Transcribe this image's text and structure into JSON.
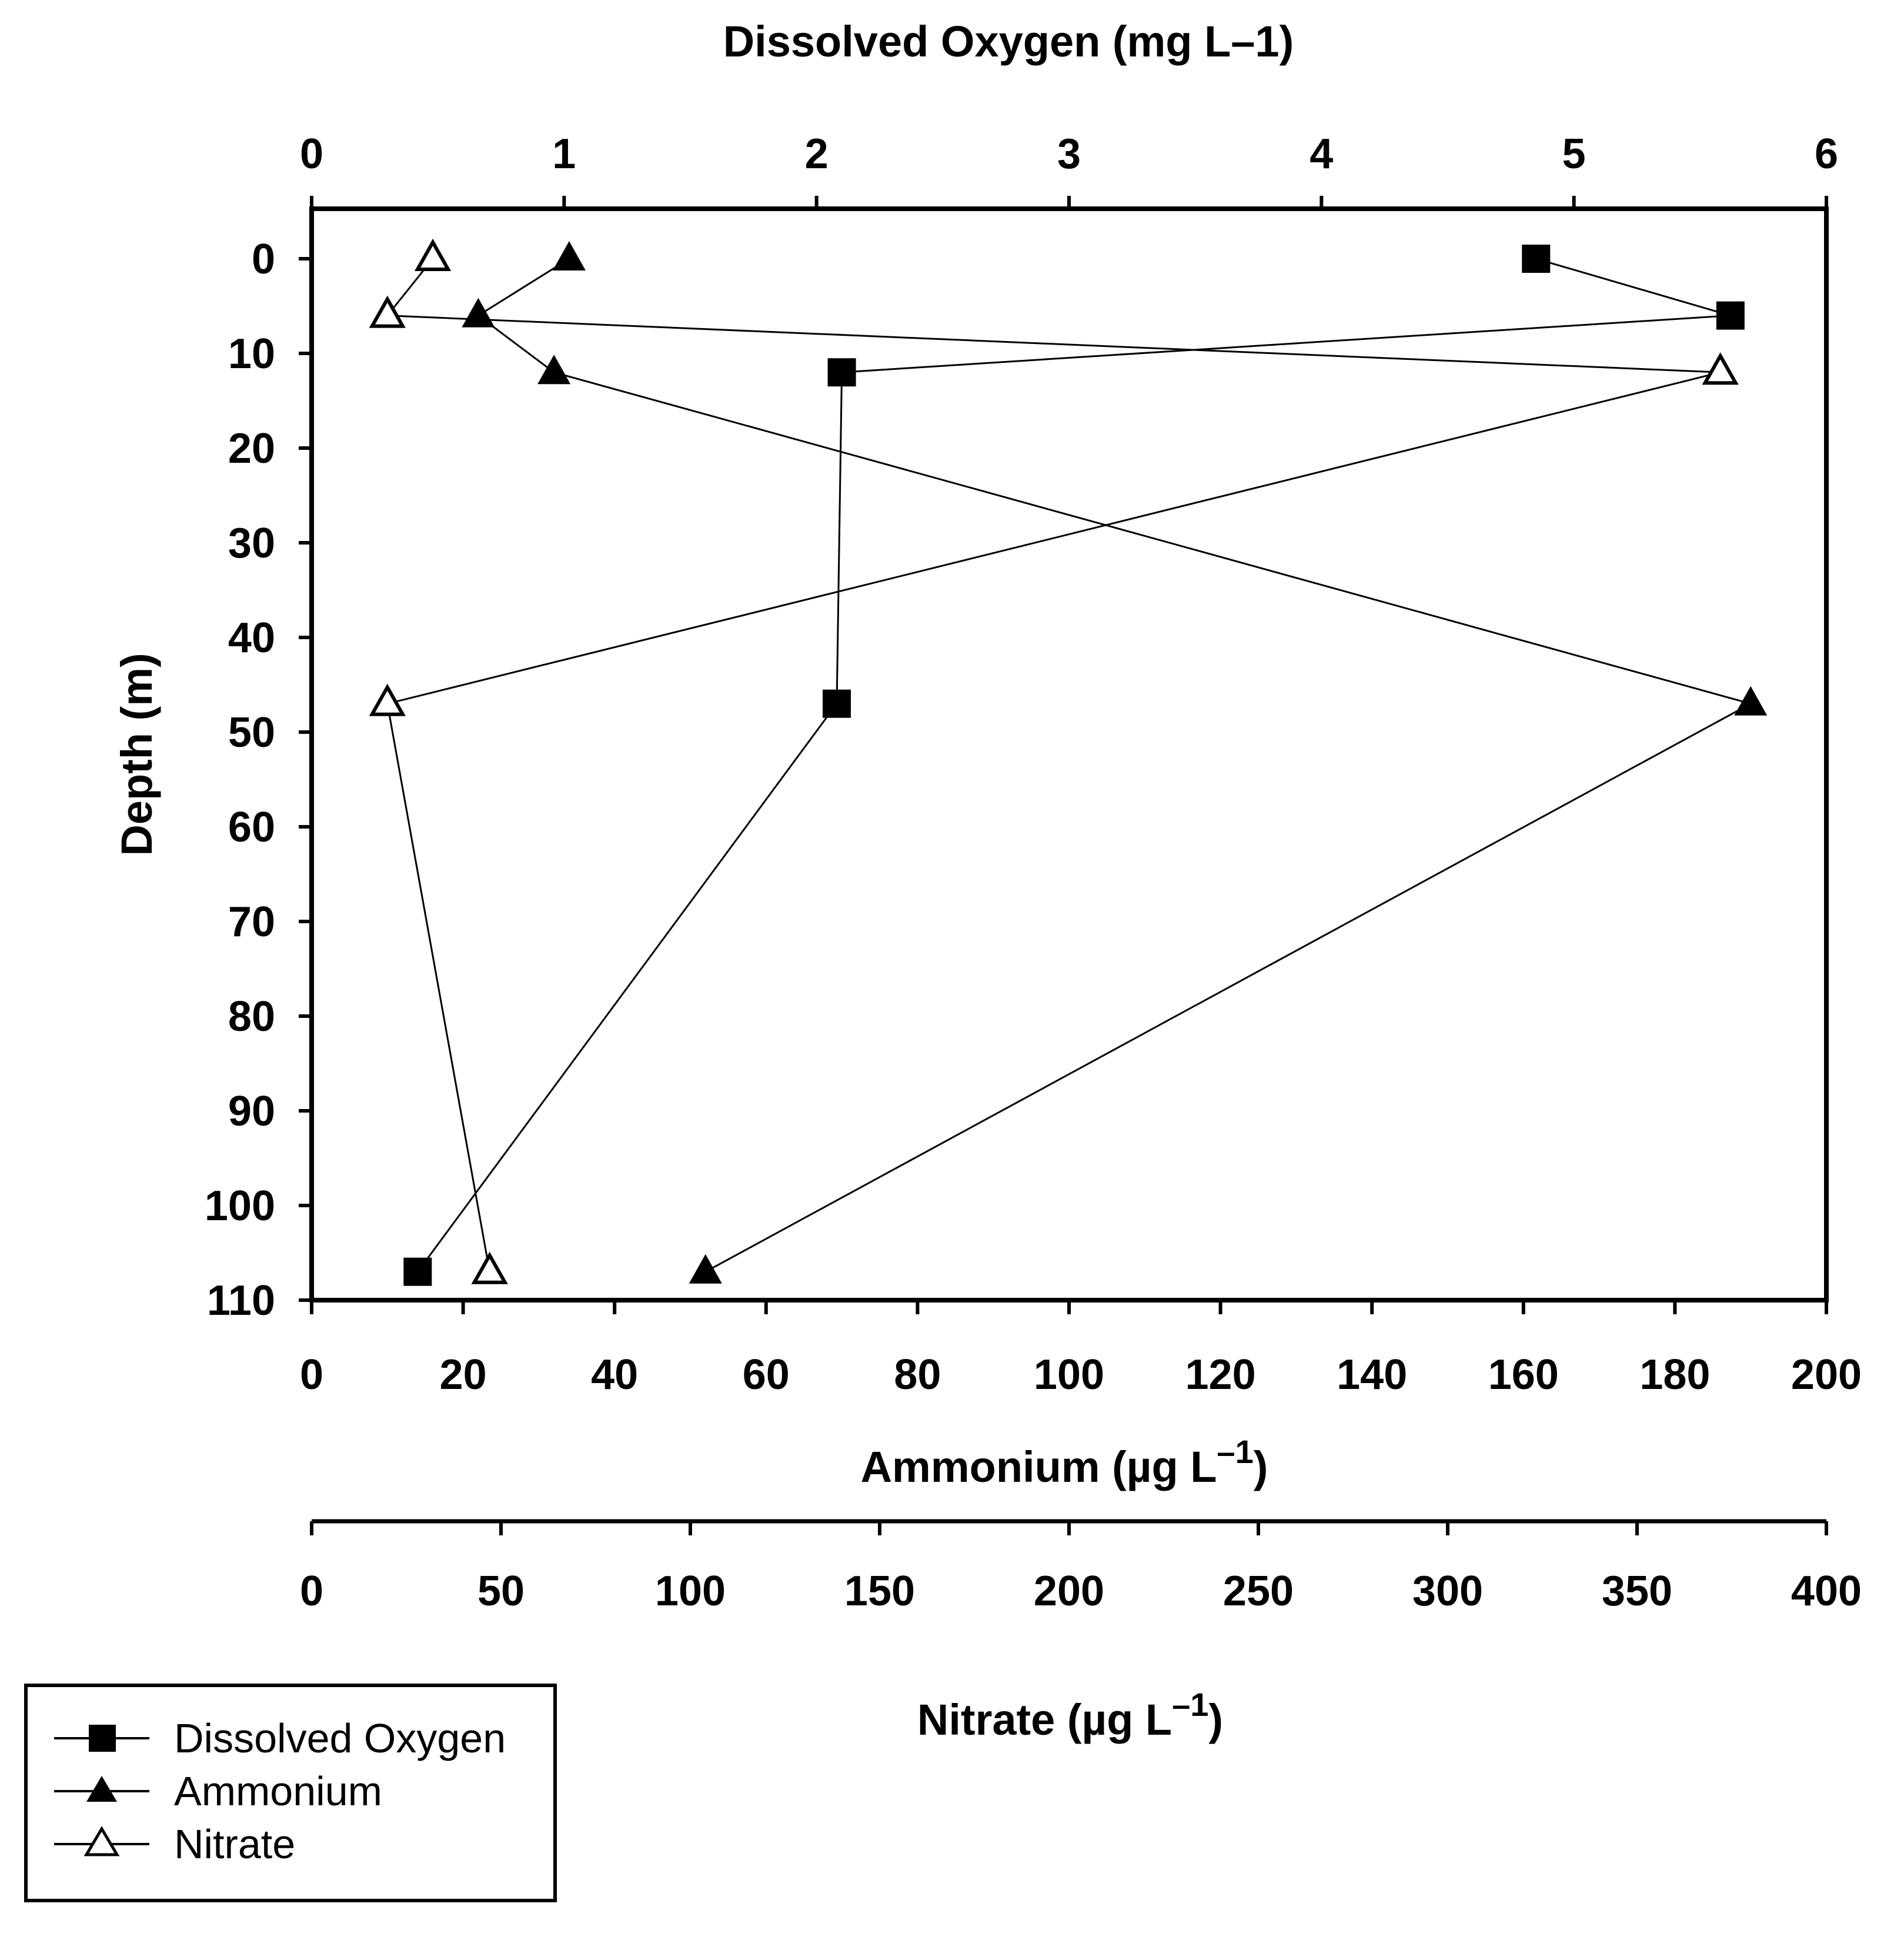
{
  "chart_data": {
    "type": "line",
    "orientation": "depth-profile",
    "top_axis": {
      "title": "Dissolved Oxygen (mg L",
      "title_sup": "–1",
      "title_close": ")",
      "range": [
        0,
        6
      ],
      "ticks": [
        "0",
        "1",
        "2",
        "3",
        "4",
        "5",
        "6"
      ]
    },
    "y_axis": {
      "title": "Depth (m)",
      "range": [
        0,
        110
      ],
      "ticks": [
        "0",
        "10",
        "20",
        "30",
        "40",
        "50",
        "60",
        "70",
        "80",
        "90",
        "100",
        "110"
      ],
      "inverted": true
    },
    "bottom_axis_1": {
      "title": "Ammonium (µg L",
      "title_sup": "–1",
      "title_close": ")",
      "range": [
        0,
        200
      ],
      "ticks": [
        "0",
        "20",
        "40",
        "60",
        "80",
        "100",
        "120",
        "140",
        "160",
        "180",
        "200"
      ]
    },
    "bottom_axis_2": {
      "title": "Nitrate (µg L",
      "title_sup": "–1",
      "title_close": ")",
      "range": [
        0,
        400
      ],
      "ticks": [
        "0",
        "50",
        "100",
        "150",
        "200",
        "250",
        "300",
        "350",
        "400"
      ]
    },
    "series": [
      {
        "name": "Dissolved Oxygen",
        "axis": "top_axis",
        "marker": "filled-square",
        "points": [
          {
            "depth": 0,
            "value": 4.85
          },
          {
            "depth": 6,
            "value": 5.62
          },
          {
            "depth": 12,
            "value": 2.1
          },
          {
            "depth": 47,
            "value": 2.08
          },
          {
            "depth": 107,
            "value": 0.42
          }
        ]
      },
      {
        "name": "Ammonium",
        "axis": "bottom_axis_1",
        "marker": "filled-triangle",
        "points": [
          {
            "depth": 0,
            "value": 34
          },
          {
            "depth": 6,
            "value": 22
          },
          {
            "depth": 12,
            "value": 32
          },
          {
            "depth": 47,
            "value": 190
          },
          {
            "depth": 107,
            "value": 52
          }
        ]
      },
      {
        "name": "Nitrate",
        "axis": "bottom_axis_2",
        "marker": "open-triangle",
        "points": [
          {
            "depth": 0,
            "value": 32
          },
          {
            "depth": 6,
            "value": 20
          },
          {
            "depth": 12,
            "value": 372
          },
          {
            "depth": 47,
            "value": 20
          },
          {
            "depth": 107,
            "value": 47
          }
        ]
      }
    ],
    "legend": {
      "position": "bottom-left",
      "entries": [
        "Dissolved Oxygen",
        "Ammonium",
        "Nitrate"
      ]
    }
  }
}
